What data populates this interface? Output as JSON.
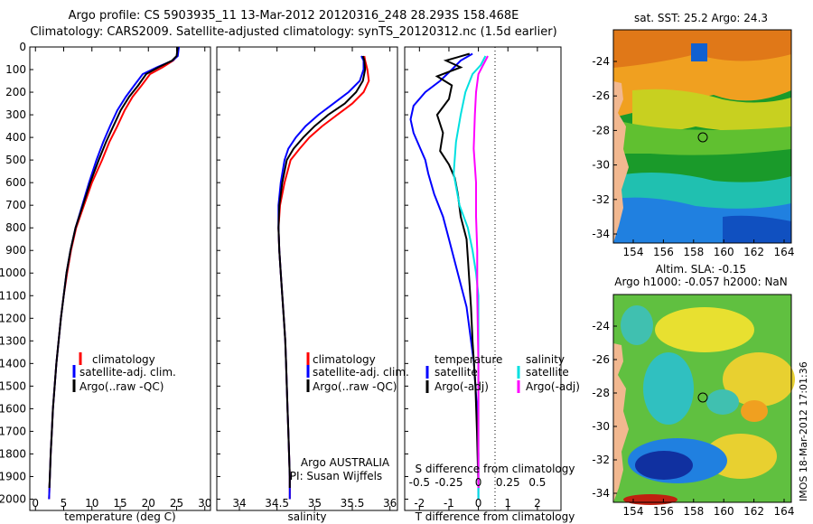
{
  "header": {
    "line1": "Argo profile: CS 5903935_11 13-Mar-2012 20120316_248 28.293S 158.468E",
    "line2": "Climatology: CARS2009. Satellite-adjusted climatology: synTS_20120312.nc (1.5d earlier)"
  },
  "colors": {
    "climatology": "#ff0000",
    "satellite": "#0000ff",
    "argo": "#000000",
    "sal_sat": "#00e0e0",
    "sal_argo": "#ff00ff"
  },
  "chart_data": [
    {
      "type": "line",
      "id": "temperature",
      "xlabel": "temperature (deg C)",
      "ylabel": "depth",
      "xlim": [
        -1,
        31
      ],
      "ylim": [
        2050,
        0
      ],
      "xticks": [
        "0",
        "5",
        "10",
        "15",
        "20",
        "25",
        "30"
      ],
      "yticks": [
        "0",
        "100",
        "200",
        "300",
        "400",
        "500",
        "600",
        "700",
        "800",
        "900",
        "1000",
        "1100",
        "1200",
        "1300",
        "1400",
        "1500",
        "1600",
        "1700",
        "1800",
        "1900",
        "2000"
      ],
      "legend": [
        "climatology",
        "satellite-adj. clim.",
        "Argo(..raw -QC)"
      ],
      "series": [
        {
          "name": "climatology",
          "color": "#ff0000",
          "x": [
            25.3,
            25.1,
            24.4,
            22.5,
            20.3,
            18.8,
            17.2,
            15.8,
            14.5,
            13.1,
            11.8,
            10.0,
            8.6,
            7.2,
            6.3,
            5.6,
            5.0,
            4.5,
            4.1,
            3.7,
            3.4,
            3.1,
            2.9,
            2.7,
            2.55,
            2.4
          ],
          "depth": [
            0,
            40,
            60,
            90,
            120,
            170,
            220,
            280,
            350,
            420,
            500,
            600,
            700,
            800,
            900,
            1000,
            1100,
            1200,
            1300,
            1400,
            1500,
            1600,
            1700,
            1800,
            1900,
            2000
          ]
        },
        {
          "name": "satellite-adj. clim.",
          "color": "#0000ff",
          "x": [
            25.4,
            25.2,
            24.3,
            21.5,
            19.0,
            17.5,
            16.0,
            14.5,
            13.2,
            12.0,
            10.8,
            9.5,
            8.3,
            7.1,
            6.2,
            5.5,
            5.0,
            4.5,
            4.1,
            3.7,
            3.4,
            3.1,
            2.9,
            2.7,
            2.55,
            2.4
          ],
          "depth": [
            0,
            40,
            60,
            90,
            120,
            170,
            220,
            280,
            350,
            420,
            500,
            600,
            700,
            800,
            900,
            1000,
            1100,
            1200,
            1300,
            1400,
            1500,
            1600,
            1700,
            1800,
            1900,
            2000
          ]
        },
        {
          "name": "Argo(..raw -QC)",
          "color": "#000000",
          "x": [
            25.2,
            25.0,
            24.2,
            21.8,
            19.6,
            18.2,
            16.6,
            15.1,
            13.8,
            12.5,
            11.2,
            9.7,
            8.4,
            7.1,
            6.2,
            5.5,
            5.0,
            4.5,
            4.1,
            3.7,
            3.4,
            3.1,
            2.9,
            2.7,
            2.55,
            2.45
          ],
          "depth": [
            0,
            40,
            60,
            90,
            120,
            170,
            220,
            280,
            350,
            420,
            500,
            600,
            700,
            800,
            900,
            1000,
            1100,
            1200,
            1300,
            1400,
            1500,
            1600,
            1700,
            1800,
            1900,
            1950
          ]
        }
      ]
    },
    {
      "type": "line",
      "id": "salinity",
      "xlabel": "salinity",
      "ylabel": "depth",
      "xlim": [
        33.7,
        36.1
      ],
      "ylim": [
        2050,
        0
      ],
      "xticks": [
        "34",
        "34.5",
        "35",
        "35.5",
        "36"
      ],
      "legend": [
        "climatology",
        "satellite-adj. clim.",
        "Argo(..raw -QC)"
      ],
      "annotation1": "Argo AUSTRALIA",
      "annotation2": "PI: Susan Wijffels",
      "series": [
        {
          "name": "climatology",
          "color": "#ff0000",
          "x": [
            35.66,
            35.67,
            35.7,
            35.72,
            35.65,
            35.5,
            35.3,
            35.1,
            34.93,
            34.8,
            34.68,
            34.6,
            34.54,
            34.52,
            34.53,
            34.55,
            34.57,
            34.59,
            34.61,
            34.62,
            34.63,
            34.64,
            34.65,
            34.66,
            34.67,
            34.67
          ],
          "depth": [
            40,
            60,
            100,
            150,
            200,
            250,
            300,
            350,
            400,
            450,
            500,
            600,
            700,
            800,
            900,
            1000,
            1100,
            1200,
            1300,
            1400,
            1500,
            1600,
            1700,
            1800,
            1900,
            2000
          ]
        },
        {
          "name": "satellite-adj. clim.",
          "color": "#0000ff",
          "x": [
            35.62,
            35.65,
            35.65,
            35.6,
            35.45,
            35.25,
            35.05,
            34.88,
            34.75,
            34.65,
            34.6,
            34.55,
            34.52,
            34.52,
            34.53,
            34.55,
            34.57,
            34.59,
            34.61,
            34.62,
            34.63,
            34.64,
            34.65,
            34.66,
            34.67,
            34.67
          ],
          "depth": [
            40,
            60,
            100,
            150,
            200,
            250,
            300,
            350,
            400,
            450,
            500,
            600,
            700,
            800,
            900,
            1000,
            1100,
            1200,
            1300,
            1400,
            1500,
            1600,
            1700,
            1800,
            1900,
            2000
          ]
        },
        {
          "name": "Argo(..raw -QC)",
          "color": "#000000",
          "x": [
            35.64,
            35.66,
            35.67,
            35.64,
            35.55,
            35.4,
            35.18,
            35.0,
            34.85,
            34.72,
            34.63,
            34.57,
            34.53,
            34.52,
            34.53,
            34.55,
            34.57,
            34.59,
            34.61,
            34.62,
            34.63,
            34.64,
            34.65,
            34.66,
            34.67,
            34.67
          ],
          "depth": [
            40,
            60,
            100,
            150,
            200,
            250,
            300,
            350,
            400,
            450,
            500,
            600,
            700,
            800,
            900,
            1000,
            1100,
            1200,
            1300,
            1400,
            1500,
            1600,
            1700,
            1800,
            1900,
            1950
          ]
        }
      ]
    },
    {
      "type": "line",
      "id": "difference",
      "xlabel": "T difference from climatology",
      "xlabel_top": "S difference from climatology",
      "xlim": [
        -2.5,
        2.8
      ],
      "ylim": [
        2050,
        0
      ],
      "xticks": [
        "-2",
        "-1",
        "0",
        "1",
        "2"
      ],
      "xticks_s": [
        "-0.5",
        "-0.25",
        "0",
        "0.25",
        "0.5"
      ],
      "legend_left_title": "temperature",
      "legend_right_title": "salinity",
      "legend_left": [
        "satellite",
        "Argo(-adj)"
      ],
      "legend_right": [
        "satellite",
        "Argo(-adj)"
      ],
      "series": [
        {
          "name": "temperature satellite",
          "color": "#0000ff",
          "x": [
            -0.2,
            -0.6,
            -0.9,
            -1.3,
            -1.8,
            -2.2,
            -2.3,
            -2.2,
            -2.0,
            -1.8,
            -1.7,
            -1.5,
            -1.2,
            -1.0,
            -0.8,
            -0.6,
            -0.4,
            -0.3,
            -0.15,
            -0.05,
            0.0,
            0.0
          ],
          "depth": [
            30,
            60,
            100,
            150,
            200,
            260,
            320,
            380,
            440,
            500,
            560,
            650,
            750,
            850,
            950,
            1050,
            1150,
            1250,
            1400,
            1600,
            1800,
            2000
          ]
        },
        {
          "name": "temperature Argo(-adj)",
          "color": "#000000",
          "x": [
            -0.3,
            -1.1,
            -0.6,
            -1.4,
            -0.9,
            -1.0,
            -1.4,
            -1.2,
            -1.3,
            -1.0,
            -0.8,
            -0.7,
            -0.6,
            -0.4,
            -0.35,
            -0.3,
            -0.25,
            -0.2,
            -0.1,
            -0.05,
            0.0
          ],
          "depth": [
            30,
            60,
            90,
            130,
            170,
            230,
            300,
            380,
            460,
            520,
            580,
            650,
            750,
            850,
            950,
            1050,
            1150,
            1300,
            1500,
            1700,
            1950
          ]
        },
        {
          "name": "salinity satellite",
          "color": "#00e0e0",
          "x": [
            0.06,
            0.02,
            -0.05,
            -0.11,
            -0.15,
            -0.19,
            -0.21,
            -0.16,
            -0.09,
            -0.05,
            -0.02,
            0.0,
            0.0,
            0.0,
            0.0,
            0.0
          ],
          "depth": [
            40,
            80,
            120,
            200,
            300,
            420,
            560,
            700,
            800,
            900,
            1000,
            1100,
            1300,
            1500,
            1800,
            2000
          ]
        },
        {
          "name": "salinity Argo(-adj)",
          "color": "#ff00ff",
          "x": [
            0.08,
            0.04,
            0.0,
            -0.02,
            -0.03,
            -0.04,
            -0.02,
            -0.02,
            -0.01,
            -0.01,
            0.0,
            0.0,
            0.0
          ],
          "depth": [
            40,
            80,
            120,
            200,
            300,
            450,
            600,
            750,
            900,
            1100,
            1400,
            1700,
            1950
          ]
        }
      ]
    }
  ],
  "maps": {
    "top": {
      "title": "sat. SST: 25.2 Argo: 24.3",
      "yticks": [
        "-24",
        "-26",
        "-28",
        "-30",
        "-32",
        "-34"
      ],
      "xticks": [
        "154",
        "156",
        "158",
        "160",
        "162",
        "164"
      ]
    },
    "bottom": {
      "title1": "Altim. SLA: -0.15",
      "title2": "Argo h1000: -0.057 h2000: NaN",
      "yticks": [
        "-24",
        "-26",
        "-28",
        "-30",
        "-32",
        "-34"
      ],
      "xticks": [
        "154",
        "156",
        "158",
        "160",
        "162",
        "164"
      ]
    }
  },
  "stamp": "IMOS 18-Mar-2012 17:01:36"
}
